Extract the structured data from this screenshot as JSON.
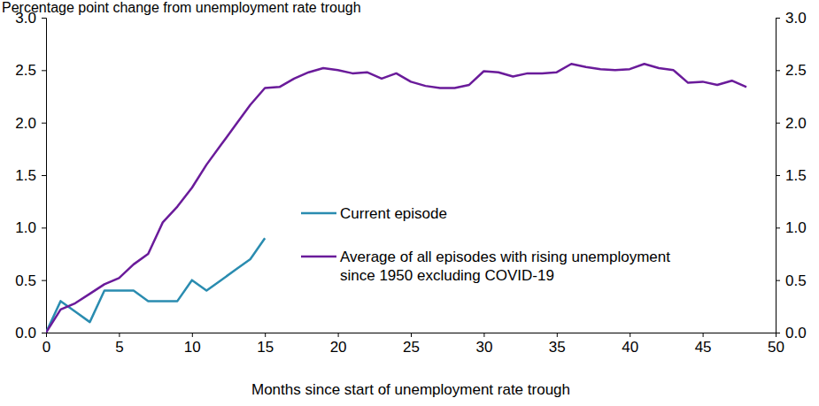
{
  "chart_data": {
    "type": "line",
    "y_label": "Percentage point change from unemployment rate trough",
    "x_label": "Months since start of unemployment rate trough",
    "x": [
      0,
      1,
      2,
      3,
      4,
      5,
      6,
      7,
      8,
      9,
      10,
      11,
      12,
      13,
      14,
      15,
      16,
      17,
      18,
      19,
      20,
      21,
      22,
      23,
      24,
      25,
      26,
      27,
      28,
      29,
      30,
      31,
      32,
      33,
      34,
      35,
      36,
      37,
      38,
      39,
      40,
      41,
      42,
      43,
      44,
      45,
      46,
      47,
      48
    ],
    "series": [
      {
        "name": "Current episode",
        "color": "#2a8cb0",
        "values": [
          0,
          0.3,
          0.2,
          0.1,
          0.4,
          0.4,
          0.4,
          0.3,
          0.3,
          0.3,
          0.5,
          0.4,
          0.5,
          0.6,
          0.7,
          0.9,
          null,
          null,
          null,
          null,
          null,
          null,
          null,
          null,
          null,
          null,
          null,
          null,
          null,
          null,
          null,
          null,
          null,
          null,
          null,
          null,
          null,
          null,
          null,
          null,
          null,
          null,
          null,
          null,
          null,
          null,
          null,
          null,
          null
        ]
      },
      {
        "name": "Average of all episodes with rising unemployment\nsince 1950 excluding COVID-19",
        "color": "#6a1b9a",
        "values": [
          0,
          0.22,
          0.28,
          0.37,
          0.46,
          0.52,
          0.65,
          0.75,
          1.05,
          1.2,
          1.38,
          1.6,
          1.79,
          1.98,
          2.17,
          2.33,
          2.34,
          2.42,
          2.48,
          2.52,
          2.5,
          2.47,
          2.48,
          2.42,
          2.47,
          2.39,
          2.35,
          2.33,
          2.33,
          2.36,
          2.49,
          2.48,
          2.44,
          2.47,
          2.47,
          2.48,
          2.56,
          2.53,
          2.51,
          2.5,
          2.51,
          2.56,
          2.52,
          2.5,
          2.38,
          2.39,
          2.36,
          2.4,
          2.34
        ]
      }
    ],
    "xlim": [
      0,
      50
    ],
    "xticks": [
      0,
      5,
      10,
      15,
      20,
      25,
      30,
      35,
      40,
      45,
      50
    ],
    "ylim": [
      0,
      3
    ],
    "yticks": [
      {
        "value": 0,
        "label": "0.0"
      },
      {
        "value": 0.5,
        "label": "0.5"
      },
      {
        "value": 1,
        "label": "1.0"
      },
      {
        "value": 1.5,
        "label": "1.5"
      },
      {
        "value": 2,
        "label": "2.0"
      },
      {
        "value": 2.5,
        "label": "2.5"
      },
      {
        "value": 3,
        "label": "3.0"
      }
    ],
    "y2lim": [
      0,
      3
    ],
    "y2ticks": [
      {
        "value": 0,
        "label": "0.0"
      },
      {
        "value": 0.5,
        "label": "0.5"
      },
      {
        "value": 1,
        "label": "1.0"
      },
      {
        "value": 1.5,
        "label": "1.5"
      },
      {
        "value": 2,
        "label": "2.0"
      },
      {
        "value": 2.5,
        "label": "2.5"
      },
      {
        "value": 3,
        "label": "3.0"
      }
    ],
    "grid": false,
    "legend": "center"
  }
}
